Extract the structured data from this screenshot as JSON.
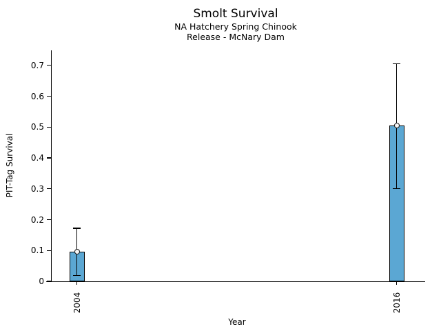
{
  "chart_data": {
    "type": "bar",
    "title": "Smolt Survival",
    "subtitle1": "NA Hatchery Spring Chinook",
    "subtitle2": "Release - McNary Dam",
    "xlabel": "Year",
    "ylabel": "PIT-Tag Survival",
    "categories": [
      "2004",
      "2016"
    ],
    "values": [
      0.095,
      0.505
    ],
    "error_low": [
      0.019,
      0.301
    ],
    "error_high": [
      0.172,
      0.705
    ],
    "ylim": [
      0,
      0.748
    ],
    "yticks": [
      0,
      0.1,
      0.2,
      0.3,
      0.4,
      0.5,
      0.6,
      0.7
    ],
    "ytick_labels": [
      "0",
      "0.1",
      "0.2",
      "0.3",
      "0.4",
      "0.5",
      "0.6",
      "0.7"
    ],
    "bar_color": "#5BA7D3",
    "bar_edge_color": "#000000",
    "error_color": "#000000",
    "marker": "open-circle",
    "grid": false,
    "legend": false
  }
}
